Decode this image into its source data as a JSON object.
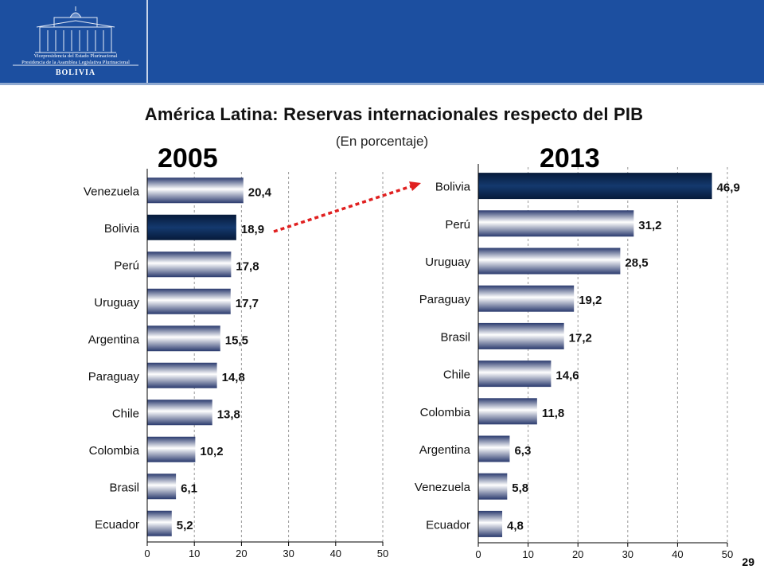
{
  "header": {
    "logo_line1": "Vicepresidencia del Estado Plurinacional",
    "logo_line2": "Presidencia de la Asamblea Legislativa Plurinacional",
    "logo_name": "BOLIVIA"
  },
  "colors": {
    "header_bg": "#1c4fa0",
    "highlight_bar": "#0c2a55",
    "arrow": "#e02020"
  },
  "title": "América Latina: Reservas internacionales respecto del PIB",
  "subtitle": "(En porcentaje)",
  "page_number": "29",
  "chart_data": [
    {
      "type": "bar",
      "orientation": "horizontal",
      "title": "2005",
      "categories": [
        "Venezuela",
        "Bolivia",
        "Perú",
        "Uruguay",
        "Argentina",
        "Paraguay",
        "Chile",
        "Colombia",
        "Brasil",
        "Ecuador"
      ],
      "values": [
        20.4,
        18.9,
        17.8,
        17.7,
        15.5,
        14.8,
        13.8,
        10.2,
        6.1,
        5.2
      ],
      "value_labels": [
        "20,4",
        "18,9",
        "17,8",
        "17,7",
        "15,5",
        "14,8",
        "13,8",
        "10,2",
        "6,1",
        "5,2"
      ],
      "highlight": "Bolivia",
      "xlim": [
        0,
        50
      ],
      "xticks": [
        "0",
        "10",
        "20",
        "30",
        "40",
        "50"
      ],
      "grid": true
    },
    {
      "type": "bar",
      "orientation": "horizontal",
      "title": "2013",
      "categories": [
        "Bolivia",
        "Perú",
        "Uruguay",
        "Paraguay",
        "Brasil",
        "Chile",
        "Colombia",
        "Argentina",
        "Venezuela",
        "Ecuador"
      ],
      "values": [
        46.9,
        31.2,
        28.5,
        19.2,
        17.2,
        14.6,
        11.8,
        6.3,
        5.8,
        4.8
      ],
      "value_labels": [
        "46,9",
        "31,2",
        "28,5",
        "19,2",
        "17,2",
        "14,6",
        "11,8",
        "6,3",
        "5,8",
        "4,8"
      ],
      "highlight": "Bolivia",
      "xlim": [
        0,
        50
      ],
      "xticks": [
        "0",
        "10",
        "20",
        "30",
        "40",
        "50"
      ],
      "grid": true
    }
  ]
}
